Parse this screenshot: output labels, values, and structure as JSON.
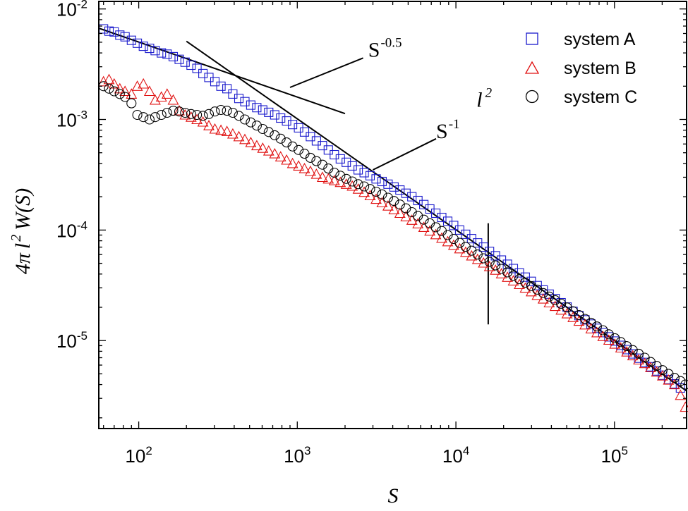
{
  "chart_data": {
    "type": "scatter",
    "title": "",
    "xlabel": "S",
    "ylabel_parts": [
      "4",
      "π",
      "l",
      "2",
      "W(S)"
    ],
    "xscale": "log",
    "yscale": "log",
    "xlim": [
      56,
      285000
    ],
    "ylim": [
      1.6e-06,
      0.0117
    ],
    "x_ticks": [
      {
        "value": 100,
        "base": "10",
        "exp": "2"
      },
      {
        "value": 1000,
        "base": "10",
        "exp": "3"
      },
      {
        "value": 10000,
        "base": "10",
        "exp": "4"
      },
      {
        "value": 100000,
        "base": "10",
        "exp": "5"
      }
    ],
    "y_ticks": [
      {
        "value": 1e-05,
        "base": "10",
        "exp": "-5"
      },
      {
        "value": 0.0001,
        "base": "10",
        "exp": "-4"
      },
      {
        "value": 0.001,
        "base": "10",
        "exp": "-3"
      },
      {
        "value": 0.01,
        "base": "10",
        "exp": "-2"
      }
    ],
    "legend_position": "top-right",
    "series": [
      {
        "name": "system A",
        "marker": "square",
        "color": "#1a1acc",
        "x": [
          60,
          65,
          70,
          76,
          82,
          90,
          98,
          107,
          117,
          127,
          139,
          151,
          165,
          180,
          196,
          214,
          233,
          254,
          277,
          302,
          330,
          360,
          392,
          428,
          467,
          509,
          555,
          605,
          660,
          720,
          785,
          856,
          933,
          1018,
          1110,
          1210,
          1320,
          1440,
          1570,
          1712,
          1867,
          2036,
          2220,
          2421,
          2640,
          2879,
          3140,
          3424,
          3734,
          4072,
          4441,
          4843,
          5281,
          5759,
          6280,
          6849,
          7469,
          8145,
          8882,
          9686,
          10563,
          11519,
          12562,
          13699,
          14939,
          16291,
          17766,
          19374,
          21128,
          23040,
          25126,
          27400,
          29880,
          32585,
          35535,
          38751,
          42259,
          46084,
          50256,
          54805,
          59766,
          65176,
          71076,
          77510,
          84526,
          92177,
          100521,
          109620,
          119543,
          130364,
          142164,
          155033,
          169066,
          184370,
          201059,
          219259,
          239106,
          260750
        ],
        "y": [
          0.0066,
          0.0063,
          0.0062,
          0.0058,
          0.0056,
          0.0052,
          0.0049,
          0.0046,
          0.0044,
          0.0042,
          0.004,
          0.0039,
          0.0037,
          0.0035,
          0.0033,
          0.0031,
          0.0029,
          0.0026,
          0.0024,
          0.0022,
          0.002,
          0.0019,
          0.0017,
          0.00155,
          0.00145,
          0.00135,
          0.00128,
          0.00122,
          0.00116,
          0.0011,
          0.00103,
          0.00097,
          0.0009,
          0.00084,
          0.00077,
          0.0007,
          0.00064,
          0.00058,
          0.00053,
          0.00048,
          0.00044,
          0.00041,
          0.00038,
          0.00035,
          0.00033,
          0.00031,
          0.00029,
          0.000275,
          0.00026,
          0.000245,
          0.00023,
          0.000215,
          0.0002,
          0.000185,
          0.00017,
          0.000155,
          0.000142,
          0.00013,
          0.00012,
          0.00011,
          0.0001,
          9.15e-05,
          8.35e-05,
          7.65e-05,
          7e-05,
          6.4e-05,
          5.85e-05,
          5.35e-05,
          4.9e-05,
          4.48e-05,
          4.1e-05,
          3.75e-05,
          3.43e-05,
          3.14e-05,
          2.87e-05,
          2.63e-05,
          2.4e-05,
          2.2e-05,
          2.01e-05,
          1.84e-05,
          1.68e-05,
          1.54e-05,
          1.41e-05,
          1.29e-05,
          1.18e-05,
          1.08e-05,
          9.9e-06,
          9.05e-06,
          8.28e-06,
          7.58e-06,
          6.93e-06,
          6.34e-06,
          5.8e-06,
          5.31e-06,
          4.86e-06,
          4.44e-06,
          4.06e-06,
          3.72e-06
        ]
      },
      {
        "name": "system B",
        "marker": "triangle",
        "color": "#e01010",
        "x": [
          60,
          65,
          70,
          76,
          82,
          90,
          98,
          107,
          117,
          127,
          139,
          151,
          165,
          180,
          196,
          214,
          233,
          254,
          277,
          302,
          330,
          360,
          392,
          428,
          467,
          509,
          555,
          605,
          660,
          720,
          785,
          856,
          933,
          1018,
          1110,
          1210,
          1320,
          1440,
          1570,
          1712,
          1867,
          2036,
          2220,
          2421,
          2640,
          2879,
          3140,
          3424,
          3734,
          4072,
          4441,
          4843,
          5281,
          5759,
          6280,
          6849,
          7469,
          8145,
          8882,
          9686,
          10563,
          11519,
          12562,
          13699,
          14939,
          16291,
          17766,
          19374,
          21128,
          23040,
          25126,
          27400,
          29880,
          32585,
          35535,
          38751,
          42259,
          46084,
          50256,
          54805,
          59766,
          65176,
          71076,
          77510,
          84526,
          92177,
          100521,
          109620,
          119543,
          130364,
          142164,
          155033,
          169066,
          184370,
          201059,
          219259,
          239106,
          260750,
          280000
        ],
        "y": [
          0.0022,
          0.0023,
          0.0021,
          0.0019,
          0.0018,
          0.0017,
          0.002,
          0.0021,
          0.0018,
          0.0015,
          0.0016,
          0.0017,
          0.0015,
          0.0012,
          0.0011,
          0.00105,
          0.001,
          0.00095,
          0.00088,
          0.00082,
          0.0008,
          0.00078,
          0.00074,
          0.0007,
          0.00066,
          0.00062,
          0.00058,
          0.00055,
          0.00052,
          0.00049,
          0.00046,
          0.00043,
          0.0004,
          0.00038,
          0.00036,
          0.00034,
          0.00032,
          0.0003,
          0.00029,
          0.00028,
          0.00027,
          0.00026,
          0.00025,
          0.000235,
          0.00022,
          0.000205,
          0.00019,
          0.000177,
          0.000165,
          0.000153,
          0.000142,
          0.000132,
          0.000123,
          0.000114,
          0.000106,
          9.8e-05,
          9.1e-05,
          8.45e-05,
          7.85e-05,
          7.3e-05,
          6.78e-05,
          6.3e-05,
          5.85e-05,
          5.43e-05,
          5.04e-05,
          4.68e-05,
          4.34e-05,
          4.03e-05,
          3.74e-05,
          3.47e-05,
          3.22e-05,
          2.99e-05,
          2.77e-05,
          2.57e-05,
          2.38e-05,
          2.2e-05,
          2.04e-05,
          1.89e-05,
          1.75e-05,
          1.62e-05,
          1.5e-05,
          1.39e-05,
          1.28e-05,
          1.18e-05,
          1.09e-05,
          1.01e-05,
          9.3e-06,
          8.6e-06,
          7.9e-06,
          7.3e-06,
          6.7e-06,
          6.2e-06,
          5.7e-06,
          5.2e-06,
          4.8e-06,
          4.4e-06,
          4e-06,
          3.2e-06,
          2.5e-06
        ]
      },
      {
        "name": "system C",
        "marker": "circle",
        "color": "#000000",
        "x": [
          60,
          65,
          70,
          76,
          82,
          90,
          98,
          107,
          117,
          127,
          139,
          151,
          165,
          180,
          196,
          214,
          233,
          254,
          277,
          302,
          330,
          360,
          392,
          428,
          467,
          509,
          555,
          605,
          660,
          720,
          785,
          856,
          933,
          1018,
          1110,
          1210,
          1320,
          1440,
          1570,
          1712,
          1867,
          2036,
          2220,
          2421,
          2640,
          2879,
          3140,
          3424,
          3734,
          4072,
          4441,
          4843,
          5281,
          5759,
          6280,
          6849,
          7469,
          8145,
          8882,
          9686,
          10563,
          11519,
          12562,
          13699,
          14939,
          16291,
          17766,
          19374,
          21128,
          23040,
          25126,
          27400,
          29880,
          32585,
          35535,
          38751,
          42259,
          46084,
          50256,
          54805,
          59766,
          65176,
          71076,
          77510,
          84526,
          92177,
          100521,
          109620,
          119543,
          130364,
          142164,
          155033,
          169066,
          184370,
          201059,
          219259,
          239106,
          260750,
          280000
        ],
        "y": [
          0.002,
          0.0019,
          0.0018,
          0.0017,
          0.0016,
          0.0014,
          0.0011,
          0.00105,
          0.001,
          0.00105,
          0.0011,
          0.00115,
          0.0012,
          0.00118,
          0.00115,
          0.00112,
          0.0011,
          0.00108,
          0.00112,
          0.00118,
          0.00122,
          0.0012,
          0.00115,
          0.00108,
          0.001,
          0.00094,
          0.00088,
          0.00082,
          0.00077,
          0.00072,
          0.00067,
          0.00062,
          0.00057,
          0.00053,
          0.00049,
          0.00045,
          0.00042,
          0.00039,
          0.00036,
          0.00033,
          0.00031,
          0.00029,
          0.000275,
          0.00026,
          0.000248,
          0.000235,
          0.000222,
          0.00021,
          0.000196,
          0.000183,
          0.00017,
          0.000157,
          0.000145,
          0.000134,
          0.000124,
          0.000115,
          0.000106,
          9.8e-05,
          9e-05,
          8.3e-05,
          7.65e-05,
          7.05e-05,
          6.5e-05,
          6e-05,
          5.55e-05,
          5.15e-05,
          4.78e-05,
          4.45e-05,
          4.14e-05,
          3.86e-05,
          3.59e-05,
          3.34e-05,
          3.11e-05,
          2.89e-05,
          2.69e-05,
          2.5e-05,
          2.32e-05,
          2.15e-05,
          1.99e-05,
          1.84e-05,
          1.7e-05,
          1.57e-05,
          1.45e-05,
          1.34e-05,
          1.24e-05,
          1.14e-05,
          1.05e-05,
          9.7e-06,
          8.9e-06,
          8.2e-06,
          7.6e-06,
          7e-06,
          6.4e-06,
          5.9e-06,
          5.4e-06,
          5e-06,
          4.6e-06,
          4.3e-06,
          4e-06
        ]
      }
    ],
    "reference_lines": [
      {
        "name": "S-0.5 line",
        "x": [
          56,
          2000
        ],
        "y": [
          0.0067,
          0.00113
        ]
      },
      {
        "name": "S-1 line",
        "x": [
          200,
          285000
        ],
        "y": [
          0.0051,
          3.5e-06
        ]
      },
      {
        "name": "l2 marker",
        "x": [
          16000,
          16000
        ],
        "y": [
          1.4e-05,
          0.000115
        ]
      },
      {
        "name": "S-0.5 leader",
        "x": [
          900,
          2600
        ],
        "y": [
          0.00195,
          0.0036
        ]
      },
      {
        "name": "S-1 leader",
        "x": [
          3000,
          7500
        ],
        "y": [
          0.00035,
          0.00067
        ]
      }
    ],
    "annotations": [
      {
        "id": "s05",
        "base": "S",
        "exp": "-0.5",
        "x": 2800,
        "y": 0.0037
      },
      {
        "id": "s1",
        "base": "S",
        "exp": "-1",
        "x": 7500,
        "y": 0.00068
      },
      {
        "id": "l2",
        "base": "l",
        "exp": "2",
        "x": 13500,
        "y": 0.0013
      }
    ]
  }
}
